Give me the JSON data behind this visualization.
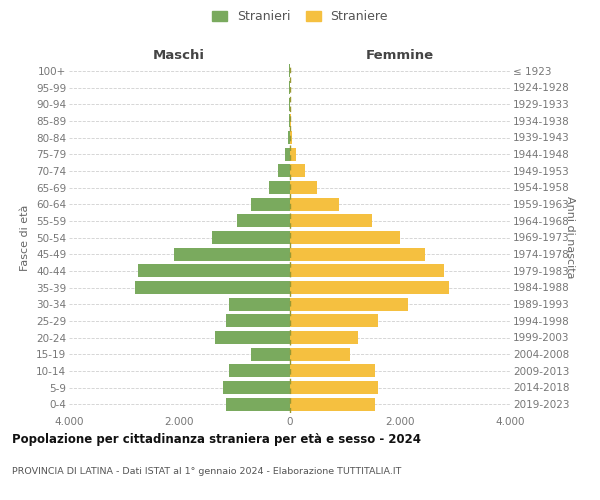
{
  "age_groups": [
    "0-4",
    "5-9",
    "10-14",
    "15-19",
    "20-24",
    "25-29",
    "30-34",
    "35-39",
    "40-44",
    "45-49",
    "50-54",
    "55-59",
    "60-64",
    "65-69",
    "70-74",
    "75-79",
    "80-84",
    "85-89",
    "90-94",
    "95-99",
    "100+"
  ],
  "birth_years": [
    "2019-2023",
    "2014-2018",
    "2009-2013",
    "2004-2008",
    "1999-2003",
    "1994-1998",
    "1989-1993",
    "1984-1988",
    "1979-1983",
    "1974-1978",
    "1969-1973",
    "1964-1968",
    "1959-1963",
    "1954-1958",
    "1949-1953",
    "1944-1948",
    "1939-1943",
    "1934-1938",
    "1929-1933",
    "1924-1928",
    "≤ 1923"
  ],
  "males": [
    1150,
    1200,
    1100,
    700,
    1350,
    1150,
    1100,
    2800,
    2750,
    2100,
    1400,
    950,
    700,
    380,
    200,
    80,
    30,
    15,
    10,
    5,
    5
  ],
  "females": [
    1550,
    1600,
    1550,
    1100,
    1250,
    1600,
    2150,
    2900,
    2800,
    2450,
    2000,
    1500,
    900,
    500,
    280,
    120,
    40,
    20,
    10,
    5,
    5
  ],
  "male_color": "#7aaa5e",
  "female_color": "#f5c040",
  "title": "Popolazione per cittadinanza straniera per età e sesso - 2024",
  "subtitle": "PROVINCIA DI LATINA - Dati ISTAT al 1° gennaio 2024 - Elaborazione TUTTITALIA.IT",
  "xlabel_left": "Maschi",
  "xlabel_right": "Femmine",
  "ylabel_left": "Fasce di età",
  "ylabel_right": "Anni di nascita",
  "legend_stranieri": "Stranieri",
  "legend_straniere": "Straniere",
  "xlim": 4000,
  "bg_color": "#ffffff",
  "grid_color": "#d0d0d0"
}
